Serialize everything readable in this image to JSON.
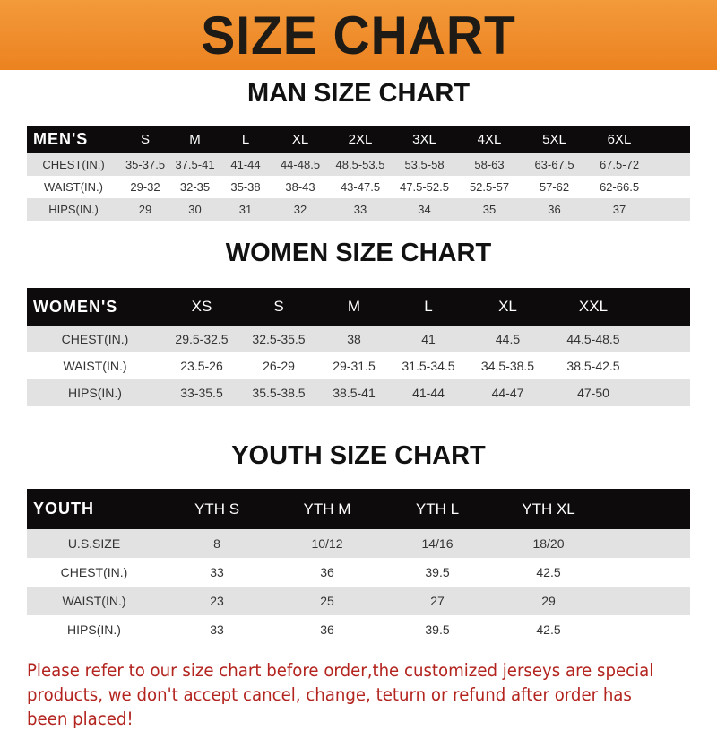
{
  "banner_title": "SIZE CHART",
  "men": {
    "title": "MAN SIZE CHART",
    "header": [
      "MEN'S",
      "S",
      "M",
      "L",
      "XL",
      "2XL",
      "3XL",
      "4XL",
      "5XL",
      "6XL"
    ],
    "rows": [
      [
        "CHEST(IN.)",
        "35-37.5",
        "37.5-41",
        "41-44",
        "44-48.5",
        "48.5-53.5",
        "53.5-58",
        "58-63",
        "63-67.5",
        "67.5-72"
      ],
      [
        "WAIST(IN.)",
        "29-32",
        "32-35",
        "35-38",
        "38-43",
        "43-47.5",
        "47.5-52.5",
        "52.5-57",
        "57-62",
        "62-66.5"
      ],
      [
        "HIPS(IN.)",
        "29",
        "30",
        "31",
        "32",
        "33",
        "34",
        "35",
        "36",
        "37"
      ]
    ]
  },
  "women": {
    "title": "WOMEN SIZE CHART",
    "header": [
      "WOMEN'S",
      "XS",
      "S",
      "M",
      "L",
      "XL",
      "XXL"
    ],
    "rows": [
      [
        "CHEST(IN.)",
        "29.5-32.5",
        "32.5-35.5",
        "38",
        "41",
        "44.5",
        "44.5-48.5"
      ],
      [
        "WAIST(IN.)",
        "23.5-26",
        "26-29",
        "29-31.5",
        "31.5-34.5",
        "34.5-38.5",
        "38.5-42.5"
      ],
      [
        "HIPS(IN.)",
        "33-35.5",
        "35.5-38.5",
        "38.5-41",
        "41-44",
        "44-47",
        "47-50"
      ]
    ]
  },
  "youth": {
    "title": "YOUTH SIZE CHART",
    "header": [
      "YOUTH",
      "YTH S",
      "YTH M",
      "YTH L",
      "YTH XL"
    ],
    "rows": [
      [
        "U.S.SIZE",
        "8",
        "10/12",
        "14/16",
        "18/20"
      ],
      [
        "CHEST(IN.)",
        "33",
        "36",
        "39.5",
        "42.5"
      ],
      [
        "WAIST(IN.)",
        "23",
        "25",
        "27",
        "29"
      ],
      [
        "HIPS(IN.)",
        "33",
        "36",
        "39.5",
        "42.5"
      ]
    ]
  },
  "note": "Please refer to our size chart before order,the customized jerseys are special products, we don't accept cancel, change, teturn or refund after order has been placed!",
  "colors": {
    "banner": "#ef8a26",
    "header_row": "#0d0b0b",
    "stripe": "#e2e2e2",
    "note": "#b3241f"
  }
}
